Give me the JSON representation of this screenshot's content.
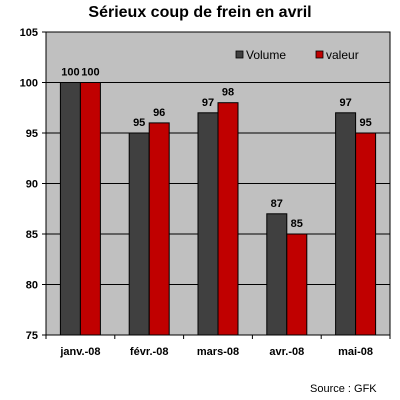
{
  "chart_data": {
    "type": "bar",
    "title": "Sérieux coup de frein en avril",
    "categories": [
      "janv.-08",
      "févr.-08",
      "mars-08",
      "avr.-08",
      "mai-08"
    ],
    "series": [
      {
        "name": "Volume",
        "values": [
          100,
          95,
          97,
          87,
          97
        ],
        "color": "#404040"
      },
      {
        "name": "valeur",
        "values": [
          100,
          96,
          98,
          85,
          95
        ],
        "color": "#c00000"
      }
    ],
    "ylim": [
      75,
      105
    ],
    "yticks": [
      75,
      80,
      85,
      90,
      95,
      100,
      105
    ],
    "grid": true,
    "legend": "top-right",
    "plot_background": "#c0c0c0",
    "source": "Source : GFK"
  }
}
